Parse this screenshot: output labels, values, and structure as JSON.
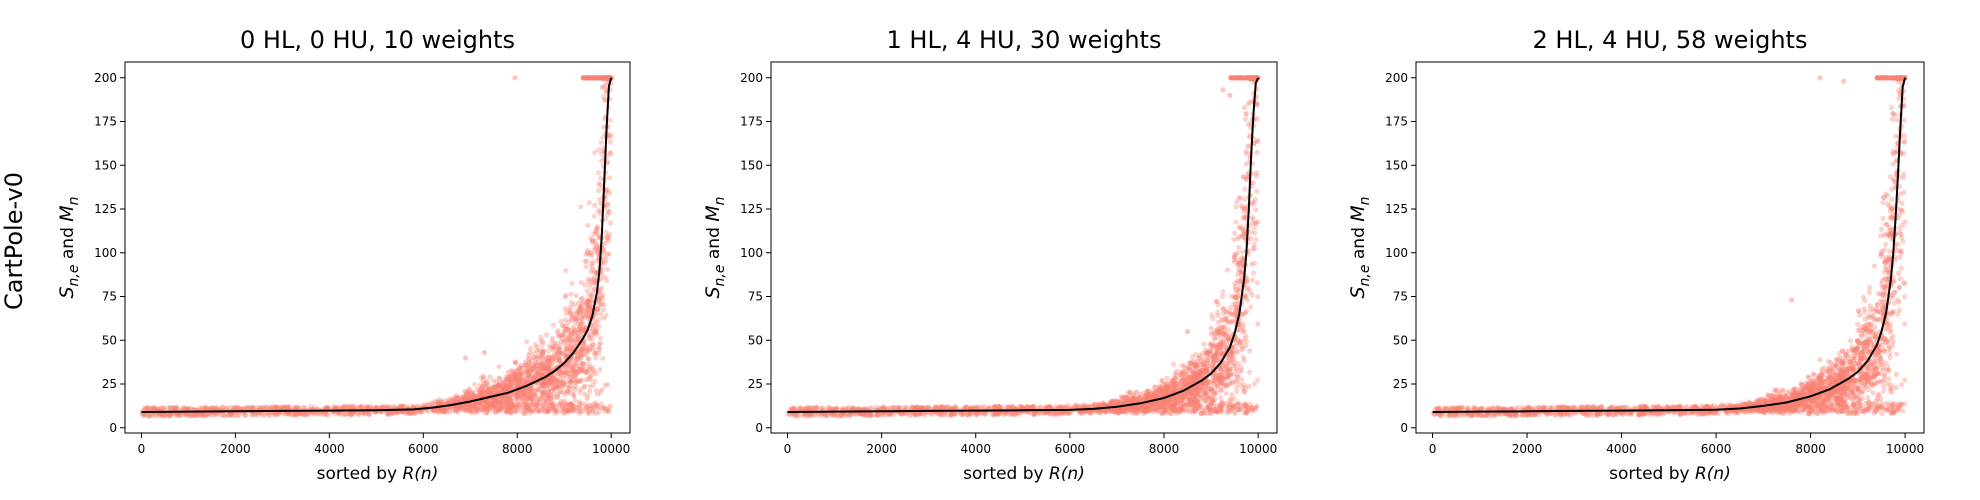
{
  "row_label": "CartPole-v0",
  "colors": {
    "scatter": "#fa8072",
    "line": "#000000",
    "axes": "#000000"
  },
  "chart_data": [
    {
      "type": "scatter",
      "title": "0 HL, 0 HU, 10 weights",
      "xlabel_prefix": "sorted by ",
      "xlabel_math": "R(n)",
      "ylabel": "S_{n,e} and M_n",
      "xlim": [
        -350,
        10400
      ],
      "ylim": [
        -3,
        209
      ],
      "xticks": [
        0,
        2000,
        4000,
        6000,
        8000,
        10000
      ],
      "yticks": [
        0,
        25,
        50,
        75,
        100,
        125,
        150,
        175,
        200
      ],
      "mean_curve": {
        "x": [
          0,
          1000,
          2000,
          3000,
          4000,
          5000,
          5800,
          6200,
          6600,
          7000,
          7400,
          7800,
          8200,
          8600,
          8800,
          9000,
          9200,
          9400,
          9500,
          9600,
          9700,
          9750,
          9800,
          9850,
          9900,
          9950,
          10000
        ],
        "y": [
          9,
          9.2,
          9.4,
          9.6,
          9.8,
          10,
          10.5,
          11.5,
          13,
          15,
          17.5,
          20,
          24,
          29,
          32.5,
          37,
          43,
          51,
          56,
          64,
          78,
          90,
          110,
          140,
          170,
          195,
          200
        ]
      },
      "scatter_outliers": {
        "x": [
          7950,
          6900,
          7300
        ],
        "y": [
          200,
          40,
          43
        ]
      }
    },
    {
      "type": "scatter",
      "title": "1 HL, 4 HU, 30 weights",
      "xlabel_prefix": "sorted by ",
      "xlabel_math": "R(n)",
      "ylabel": "S_{n,e} and M_n",
      "xlim": [
        -350,
        10400
      ],
      "ylim": [
        -3,
        209
      ],
      "xticks": [
        0,
        2000,
        4000,
        6000,
        8000,
        10000
      ],
      "yticks": [
        0,
        25,
        50,
        75,
        100,
        125,
        150,
        175,
        200
      ],
      "mean_curve": {
        "x": [
          0,
          1000,
          2000,
          3000,
          4000,
          5000,
          6000,
          6500,
          7000,
          7500,
          8000,
          8400,
          8800,
          9000,
          9200,
          9400,
          9500,
          9600,
          9700,
          9750,
          9800,
          9850,
          9900,
          9950,
          10000
        ],
        "y": [
          9,
          9.2,
          9.4,
          9.6,
          9.8,
          10,
          10.2,
          10.8,
          12,
          14,
          17,
          21,
          27,
          31,
          37,
          46,
          54,
          65,
          85,
          100,
          125,
          155,
          180,
          197,
          200
        ]
      },
      "scatter_outliers": {
        "x": [
          9250,
          9400,
          8500
        ],
        "y": [
          193,
          190,
          55
        ]
      }
    },
    {
      "type": "scatter",
      "title": "2 HL, 4 HU, 58 weights",
      "xlabel_prefix": "sorted by ",
      "xlabel_math": "R(n)",
      "ylabel": "S_{n,e} and M_n",
      "xlim": [
        -350,
        10400
      ],
      "ylim": [
        -3,
        209
      ],
      "xticks": [
        0,
        2000,
        4000,
        6000,
        8000,
        10000
      ],
      "yticks": [
        0,
        25,
        50,
        75,
        100,
        125,
        150,
        175,
        200
      ],
      "mean_curve": {
        "x": [
          0,
          1000,
          2000,
          3000,
          4000,
          5000,
          6000,
          6500,
          7000,
          7500,
          8000,
          8400,
          8800,
          9000,
          9200,
          9400,
          9500,
          9600,
          9700,
          9750,
          9800,
          9850,
          9900,
          9950,
          10000
        ],
        "y": [
          9,
          9.2,
          9.4,
          9.6,
          9.8,
          10,
          10.3,
          11,
          12.5,
          14.5,
          18,
          22,
          28,
          32,
          38,
          47,
          55,
          66,
          85,
          100,
          120,
          145,
          172,
          195,
          200
        ]
      },
      "scatter_outliers": {
        "x": [
          8200,
          8700,
          7600
        ],
        "y": [
          200,
          198,
          73
        ]
      }
    }
  ]
}
